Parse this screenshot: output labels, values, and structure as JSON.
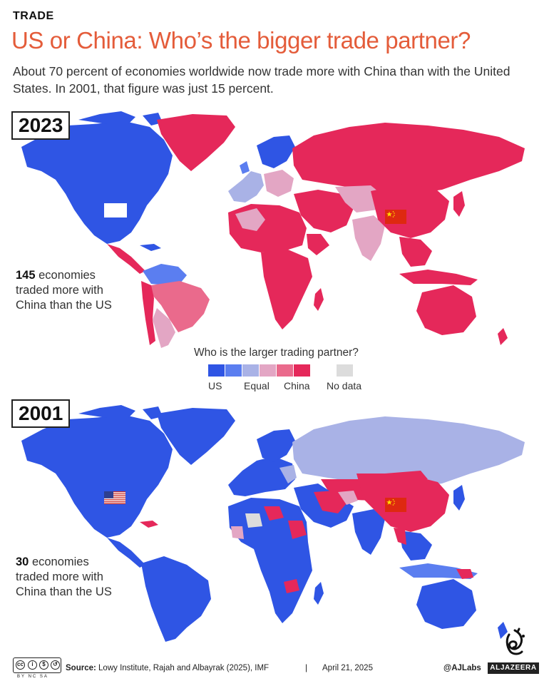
{
  "header": {
    "kicker": "TRADE",
    "title": "US or China: Who’s the bigger trade partner?",
    "subtitle": "About 70 percent of economies worldwide now trade more with China than with the United States. In 2001, that figure was just 15 percent."
  },
  "maps": [
    {
      "year": "2023",
      "stat_number": "145",
      "stat_text_1": " economies",
      "stat_text_2": "traded more with",
      "stat_text_3": "China than the US"
    },
    {
      "year": "2001",
      "stat_number": "30",
      "stat_text_1": " economies",
      "stat_text_2": "traded more with",
      "stat_text_3": "China than the US"
    }
  ],
  "legend": {
    "title": "Who is the larger trading partner?",
    "label_us": "US",
    "label_equal": "Equal",
    "label_china": "China",
    "label_nodata": "No data",
    "colors": [
      "#2f55e4",
      "#5b7ef0",
      "#a9b2e6",
      "#e3a6c4",
      "#ea6a8c",
      "#e5285a"
    ],
    "nodata_color": "#dcdcdc"
  },
  "footer": {
    "license": "BY  NC  SA",
    "source_label": "Source:",
    "source_text": " Lowy Institute, Rajah and Albayrak (2025), IMF",
    "separator": "|",
    "date": "April 21, 2025",
    "handle": "@AJLabs",
    "logo": "ALJAZEERA"
  },
  "icons": [
    "us-flag-icon",
    "china-flag-icon",
    "creative-commons-icon",
    "aljazeera-logo-icon"
  ]
}
